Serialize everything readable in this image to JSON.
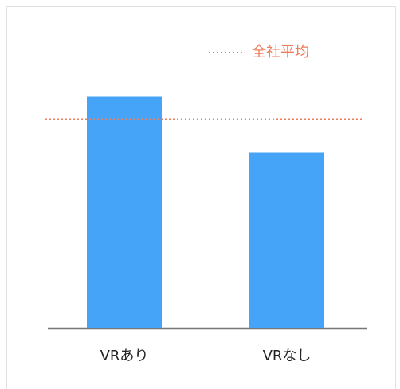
{
  "chart_data": {
    "type": "bar",
    "categories": [
      "VRあり",
      "VRなし"
    ],
    "values": [
      83,
      63
    ],
    "color": "#45a4f7",
    "ylim": [
      0,
      100
    ],
    "reference_line": {
      "name": "全社平均",
      "value": 75,
      "color": "#ef7d5c"
    },
    "legend": "top-right"
  }
}
